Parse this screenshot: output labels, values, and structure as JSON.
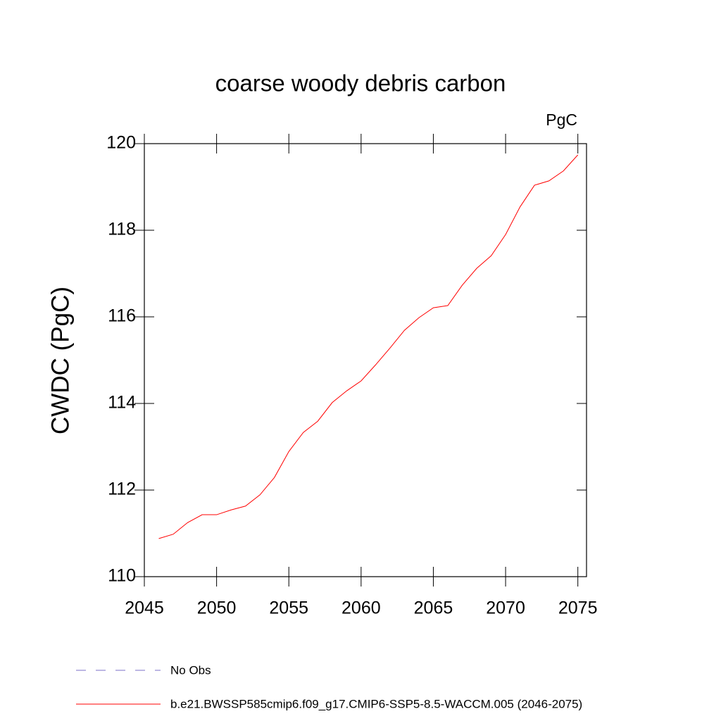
{
  "chart_data": {
    "type": "line",
    "title": "coarse woody debris carbon",
    "unit_label": "PgC",
    "y_label": "CWDC  (PgC)",
    "x": [
      2046,
      2047,
      2048,
      2049,
      2050,
      2051,
      2052,
      2053,
      2054,
      2055,
      2056,
      2057,
      2058,
      2059,
      2060,
      2061,
      2062,
      2063,
      2064,
      2065,
      2066,
      2067,
      2068,
      2069,
      2070,
      2071,
      2072,
      2073,
      2074,
      2075
    ],
    "series": [
      {
        "name": "b.e21.BWSSP585cmip6.f09_g17.CMIP6-SSP5-8.5-WACCM.005 (2046-2075)",
        "color": "#ff0000",
        "values": [
          110.88,
          110.98,
          111.25,
          111.43,
          111.43,
          111.54,
          111.63,
          111.89,
          112.29,
          112.89,
          113.33,
          113.59,
          114.02,
          114.29,
          114.52,
          114.89,
          115.28,
          115.69,
          115.98,
          116.21,
          116.26,
          116.73,
          117.12,
          117.41,
          117.9,
          118.54,
          119.04,
          119.14,
          119.37,
          119.74
        ]
      }
    ],
    "reference": {
      "name": "No Obs",
      "color": "#7b6fc8",
      "dash": "14 14"
    },
    "xlim": [
      2045,
      2075.6
    ],
    "xticks": [
      2045,
      2050,
      2055,
      2060,
      2065,
      2070,
      2075
    ],
    "ylim": [
      110,
      120
    ],
    "yticks": [
      110,
      112,
      114,
      116,
      118,
      120
    ]
  }
}
